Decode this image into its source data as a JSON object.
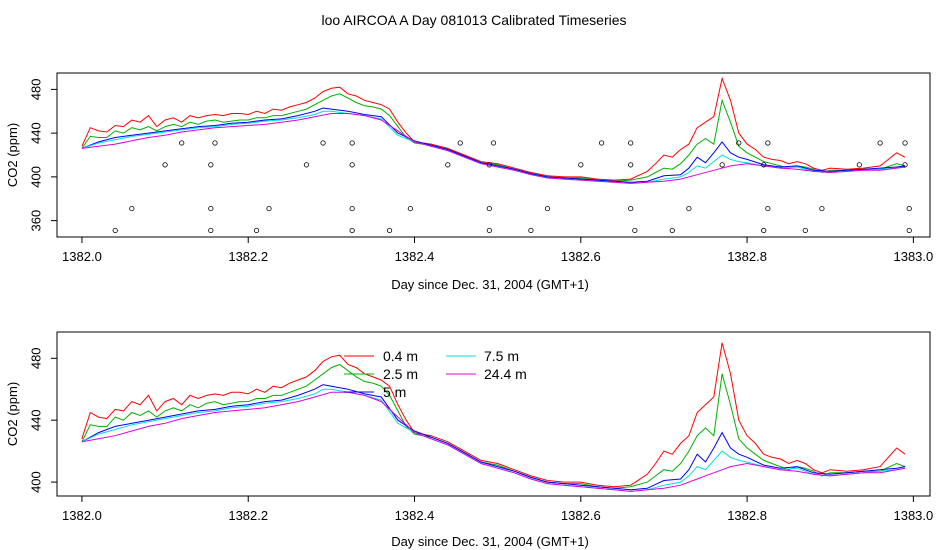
{
  "title": "loo AIRCOA A  Day 081013  Calibrated Timeseries",
  "colors": {
    "series_0_4": "#ff0000",
    "series_2_5": "#00b000",
    "series_5": "#0000ff",
    "series_7_5": "#00e0e0",
    "series_24_4": "#e000e0",
    "markers": "#000000",
    "frame": "#000000"
  },
  "chart_data": [
    {
      "type": "line",
      "name": "top",
      "xlabel": "Day since Dec. 31, 2004 (GMT+1)",
      "ylabel": "CO2 (ppm)",
      "xlim": [
        1381.97,
        1383.02
      ],
      "ylim": [
        345,
        495
      ],
      "xticks": [
        1382.0,
        1382.2,
        1382.4,
        1382.6,
        1382.8,
        1383.0
      ],
      "xtick_labels": [
        "1382.0",
        "1382.2",
        "1382.4",
        "1382.6",
        "1382.8",
        "1383.0"
      ],
      "yticks": [
        360,
        400,
        440,
        480
      ],
      "ytick_labels": [
        "360",
        "400",
        "440",
        "480"
      ],
      "grid": false,
      "legend": false,
      "series": [
        {
          "color_key": "series_0_4",
          "x": [
            1382.0,
            1382.01,
            1382.02,
            1382.03,
            1382.04,
            1382.05,
            1382.06,
            1382.07,
            1382.08,
            1382.09,
            1382.1,
            1382.11,
            1382.12,
            1382.13,
            1382.14,
            1382.15,
            1382.16,
            1382.17,
            1382.18,
            1382.19,
            1382.2,
            1382.21,
            1382.22,
            1382.23,
            1382.24,
            1382.25,
            1382.26,
            1382.27,
            1382.28,
            1382.29,
            1382.3,
            1382.31,
            1382.32,
            1382.33,
            1382.34,
            1382.35,
            1382.36,
            1382.37,
            1382.38,
            1382.39,
            1382.4,
            1382.42,
            1382.44,
            1382.46,
            1382.48,
            1382.5,
            1382.52,
            1382.54,
            1382.56,
            1382.58,
            1382.6,
            1382.62,
            1382.64,
            1382.66,
            1382.68,
            1382.69,
            1382.7,
            1382.71,
            1382.72,
            1382.73,
            1382.74,
            1382.75,
            1382.76,
            1382.77,
            1382.78,
            1382.79,
            1382.8,
            1382.81,
            1382.82,
            1382.83,
            1382.84,
            1382.85,
            1382.86,
            1382.87,
            1382.88,
            1382.89,
            1382.9,
            1382.92,
            1382.94,
            1382.96,
            1382.98,
            1382.99
          ],
          "values": [
            428,
            445,
            442,
            441,
            447,
            446,
            452,
            450,
            456,
            446,
            452,
            454,
            450,
            456,
            454,
            456,
            457,
            456,
            458,
            458,
            457,
            460,
            458,
            462,
            461,
            464,
            466,
            468,
            472,
            478,
            481,
            482,
            476,
            474,
            470,
            468,
            466,
            462,
            450,
            440,
            432,
            430,
            426,
            420,
            414,
            412,
            408,
            404,
            401,
            400,
            400,
            398,
            397,
            398,
            405,
            412,
            420,
            418,
            425,
            430,
            445,
            450,
            455,
            490,
            470,
            440,
            430,
            425,
            418,
            416,
            415,
            412,
            414,
            412,
            408,
            406,
            408,
            407,
            408,
            410,
            422,
            418
          ]
        },
        {
          "color_key": "series_2_5",
          "x": [
            1382.0,
            1382.01,
            1382.02,
            1382.03,
            1382.04,
            1382.05,
            1382.06,
            1382.07,
            1382.08,
            1382.09,
            1382.1,
            1382.11,
            1382.12,
            1382.13,
            1382.14,
            1382.15,
            1382.16,
            1382.17,
            1382.18,
            1382.19,
            1382.2,
            1382.21,
            1382.22,
            1382.23,
            1382.24,
            1382.25,
            1382.26,
            1382.27,
            1382.28,
            1382.29,
            1382.3,
            1382.31,
            1382.32,
            1382.33,
            1382.34,
            1382.35,
            1382.36,
            1382.37,
            1382.38,
            1382.39,
            1382.4,
            1382.42,
            1382.44,
            1382.46,
            1382.48,
            1382.5,
            1382.52,
            1382.54,
            1382.56,
            1382.58,
            1382.6,
            1382.62,
            1382.64,
            1382.66,
            1382.68,
            1382.69,
            1382.7,
            1382.71,
            1382.72,
            1382.73,
            1382.74,
            1382.75,
            1382.76,
            1382.77,
            1382.78,
            1382.79,
            1382.8,
            1382.81,
            1382.82,
            1382.83,
            1382.84,
            1382.85,
            1382.86,
            1382.87,
            1382.88,
            1382.89,
            1382.9,
            1382.92,
            1382.94,
            1382.96,
            1382.98,
            1382.99
          ],
          "values": [
            426,
            437,
            436,
            436,
            442,
            440,
            445,
            443,
            446,
            442,
            446,
            448,
            446,
            450,
            448,
            451,
            452,
            450,
            451,
            452,
            452,
            454,
            454,
            456,
            456,
            458,
            460,
            462,
            466,
            470,
            474,
            476,
            472,
            468,
            465,
            464,
            462,
            456,
            446,
            436,
            431,
            429,
            425,
            419,
            413,
            411,
            407,
            403,
            400,
            399,
            399,
            397,
            396,
            397,
            400,
            404,
            408,
            407,
            412,
            420,
            430,
            435,
            430,
            470,
            450,
            428,
            422,
            418,
            414,
            412,
            410,
            408,
            410,
            409,
            407,
            404,
            406,
            406,
            407,
            407,
            412,
            410
          ]
        },
        {
          "color_key": "series_5",
          "x": [
            1382.0,
            1382.02,
            1382.04,
            1382.06,
            1382.08,
            1382.1,
            1382.12,
            1382.14,
            1382.16,
            1382.18,
            1382.2,
            1382.22,
            1382.24,
            1382.26,
            1382.28,
            1382.29,
            1382.3,
            1382.32,
            1382.34,
            1382.36,
            1382.38,
            1382.4,
            1382.42,
            1382.44,
            1382.46,
            1382.48,
            1382.5,
            1382.52,
            1382.54,
            1382.56,
            1382.58,
            1382.6,
            1382.62,
            1382.64,
            1382.66,
            1382.68,
            1382.7,
            1382.72,
            1382.73,
            1382.74,
            1382.75,
            1382.76,
            1382.77,
            1382.78,
            1382.79,
            1382.8,
            1382.82,
            1382.84,
            1382.86,
            1382.88,
            1382.9,
            1382.92,
            1382.94,
            1382.96,
            1382.98,
            1382.99
          ],
          "values": [
            426,
            432,
            436,
            438,
            440,
            442,
            444,
            446,
            447,
            449,
            450,
            452,
            453,
            456,
            460,
            463,
            462,
            460,
            457,
            455,
            440,
            433,
            429,
            425,
            419,
            413,
            410,
            407,
            403,
            400,
            399,
            398,
            397,
            396,
            395,
            396,
            401,
            402,
            408,
            418,
            413,
            422,
            432,
            422,
            418,
            416,
            411,
            409,
            410,
            406,
            405,
            406,
            407,
            408,
            409,
            410
          ]
        },
        {
          "color_key": "series_7_5",
          "x": [
            1382.0,
            1382.02,
            1382.04,
            1382.06,
            1382.08,
            1382.1,
            1382.12,
            1382.14,
            1382.16,
            1382.18,
            1382.2,
            1382.22,
            1382.24,
            1382.26,
            1382.28,
            1382.29,
            1382.3,
            1382.32,
            1382.34,
            1382.36,
            1382.38,
            1382.4,
            1382.42,
            1382.44,
            1382.46,
            1382.48,
            1382.5,
            1382.52,
            1382.54,
            1382.56,
            1382.58,
            1382.6,
            1382.62,
            1382.64,
            1382.66,
            1382.68,
            1382.7,
            1382.72,
            1382.73,
            1382.74,
            1382.75,
            1382.76,
            1382.77,
            1382.78,
            1382.79,
            1382.8,
            1382.82,
            1382.84,
            1382.86,
            1382.88,
            1382.9,
            1382.92,
            1382.94,
            1382.96,
            1382.98,
            1382.99
          ],
          "values": [
            426,
            431,
            434,
            437,
            439,
            441,
            443,
            445,
            446,
            448,
            449,
            451,
            452,
            454,
            457,
            460,
            460,
            458,
            456,
            453,
            438,
            432,
            428,
            424,
            418,
            412,
            409,
            406,
            402,
            399,
            398,
            397,
            396,
            395,
            394,
            395,
            398,
            400,
            404,
            410,
            408,
            414,
            420,
            416,
            414,
            413,
            410,
            408,
            409,
            405,
            404,
            405,
            406,
            407,
            408,
            409
          ]
        },
        {
          "color_key": "series_24_4",
          "x": [
            1382.0,
            1382.02,
            1382.04,
            1382.06,
            1382.08,
            1382.1,
            1382.12,
            1382.14,
            1382.16,
            1382.18,
            1382.2,
            1382.22,
            1382.24,
            1382.26,
            1382.28,
            1382.3,
            1382.32,
            1382.34,
            1382.36,
            1382.38,
            1382.4,
            1382.42,
            1382.44,
            1382.46,
            1382.48,
            1382.5,
            1382.52,
            1382.54,
            1382.56,
            1382.58,
            1382.6,
            1382.62,
            1382.64,
            1382.66,
            1382.68,
            1382.7,
            1382.72,
            1382.74,
            1382.76,
            1382.78,
            1382.8,
            1382.82,
            1382.84,
            1382.86,
            1382.88,
            1382.9,
            1382.92,
            1382.94,
            1382.96,
            1382.98,
            1382.99
          ],
          "values": [
            426,
            428,
            430,
            433,
            436,
            438,
            441,
            443,
            445,
            446,
            447,
            448,
            450,
            452,
            455,
            458,
            458,
            456,
            452,
            442,
            432,
            428,
            424,
            418,
            412,
            409,
            406,
            402,
            399,
            398,
            397,
            396,
            395,
            394,
            395,
            396,
            398,
            402,
            406,
            410,
            412,
            410,
            408,
            407,
            405,
            404,
            405,
            406,
            406,
            408,
            409
          ]
        }
      ],
      "markers": [
        {
          "x": 1382.04,
          "y": 351
        },
        {
          "x": 1382.06,
          "y": 371
        },
        {
          "x": 1382.1,
          "y": 411
        },
        {
          "x": 1382.12,
          "y": 431
        },
        {
          "x": 1382.155,
          "y": 351
        },
        {
          "x": 1382.155,
          "y": 371
        },
        {
          "x": 1382.155,
          "y": 411
        },
        {
          "x": 1382.16,
          "y": 431
        },
        {
          "x": 1382.21,
          "y": 351
        },
        {
          "x": 1382.225,
          "y": 371
        },
        {
          "x": 1382.27,
          "y": 411
        },
        {
          "x": 1382.29,
          "y": 431
        },
        {
          "x": 1382.325,
          "y": 431
        },
        {
          "x": 1382.325,
          "y": 411
        },
        {
          "x": 1382.325,
          "y": 371
        },
        {
          "x": 1382.325,
          "y": 351
        },
        {
          "x": 1382.37,
          "y": 351
        },
        {
          "x": 1382.395,
          "y": 371
        },
        {
          "x": 1382.44,
          "y": 411
        },
        {
          "x": 1382.455,
          "y": 431
        },
        {
          "x": 1382.49,
          "y": 351
        },
        {
          "x": 1382.49,
          "y": 371
        },
        {
          "x": 1382.49,
          "y": 411
        },
        {
          "x": 1382.495,
          "y": 431
        },
        {
          "x": 1382.54,
          "y": 351
        },
        {
          "x": 1382.56,
          "y": 371
        },
        {
          "x": 1382.6,
          "y": 411
        },
        {
          "x": 1382.625,
          "y": 431
        },
        {
          "x": 1382.66,
          "y": 411
        },
        {
          "x": 1382.66,
          "y": 431
        },
        {
          "x": 1382.66,
          "y": 371
        },
        {
          "x": 1382.665,
          "y": 351
        },
        {
          "x": 1382.71,
          "y": 351
        },
        {
          "x": 1382.73,
          "y": 371
        },
        {
          "x": 1382.77,
          "y": 411
        },
        {
          "x": 1382.79,
          "y": 431
        },
        {
          "x": 1382.82,
          "y": 411
        },
        {
          "x": 1382.82,
          "y": 351
        },
        {
          "x": 1382.825,
          "y": 371
        },
        {
          "x": 1382.825,
          "y": 431
        },
        {
          "x": 1382.87,
          "y": 351
        },
        {
          "x": 1382.89,
          "y": 371
        },
        {
          "x": 1382.935,
          "y": 411
        },
        {
          "x": 1382.96,
          "y": 431
        },
        {
          "x": 1382.99,
          "y": 431
        },
        {
          "x": 1382.99,
          "y": 411
        },
        {
          "x": 1382.995,
          "y": 371
        },
        {
          "x": 1382.995,
          "y": 351
        }
      ]
    },
    {
      "type": "line",
      "name": "bottom",
      "xlabel": "Day since Dec. 31, 2004 (GMT+1)",
      "ylabel": "CO2 (ppm)",
      "xlim": [
        1381.97,
        1383.02
      ],
      "ylim": [
        391,
        497
      ],
      "xticks": [
        1382.0,
        1382.2,
        1382.4,
        1382.6,
        1382.8,
        1383.0
      ],
      "xtick_labels": [
        "1382.0",
        "1382.2",
        "1382.4",
        "1382.6",
        "1382.8",
        "1383.0"
      ],
      "yticks": [
        400,
        440,
        480
      ],
      "ytick_labels": [
        "400",
        "440",
        "480"
      ],
      "grid": false,
      "legend": "top-left",
      "legend_entries": [
        {
          "label": "0.4 m",
          "color_key": "series_0_4"
        },
        {
          "label": "2.5 m",
          "color_key": "series_2_5"
        },
        {
          "label": "5 m",
          "color_key": "series_5"
        },
        {
          "label": "7.5 m",
          "color_key": "series_7_5"
        },
        {
          "label": "24.4 m",
          "color_key": "series_24_4"
        }
      ]
    }
  ]
}
